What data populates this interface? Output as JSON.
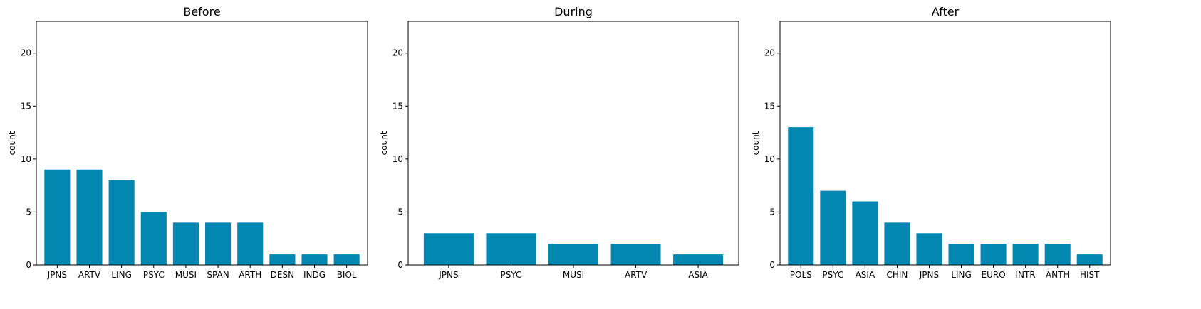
{
  "chart_data": [
    {
      "type": "bar",
      "title": "Before",
      "ylabel": "count",
      "xlabel": "",
      "ylim": [
        0,
        23
      ],
      "yticks": [
        0,
        5,
        10,
        15,
        20
      ],
      "grid": false,
      "color": "#0288B0",
      "categories": [
        "JPNS",
        "ARTV",
        "LING",
        "PSYC",
        "MUSI",
        "SPAN",
        "ARTH",
        "DESN",
        "INDG",
        "BIOL"
      ],
      "values": [
        9,
        9,
        8,
        5,
        4,
        4,
        4,
        1,
        1,
        1
      ]
    },
    {
      "type": "bar",
      "title": "During",
      "ylabel": "count",
      "xlabel": "",
      "ylim": [
        0,
        23
      ],
      "yticks": [
        0,
        5,
        10,
        15,
        20
      ],
      "grid": false,
      "color": "#0288B0",
      "categories": [
        "JPNS",
        "PSYC",
        "MUSI",
        "ARTV",
        "ASIA"
      ],
      "values": [
        3,
        3,
        2,
        2,
        1
      ]
    },
    {
      "type": "bar",
      "title": "After",
      "ylabel": "count",
      "xlabel": "",
      "ylim": [
        0,
        23
      ],
      "yticks": [
        0,
        5,
        10,
        15,
        20
      ],
      "grid": false,
      "color": "#0288B0",
      "categories": [
        "POLS",
        "PSYC",
        "ASIA",
        "CHIN",
        "JPNS",
        "LING",
        "EURO",
        "INTR",
        "ANTH",
        "HIST"
      ],
      "values": [
        13,
        7,
        6,
        4,
        3,
        2,
        2,
        2,
        2,
        1
      ]
    }
  ]
}
